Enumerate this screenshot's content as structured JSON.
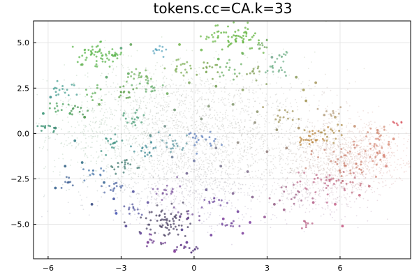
{
  "chart_data": {
    "type": "scatter",
    "title": "tokens.cc=CA.k=33",
    "xlabel": "",
    "ylabel": "",
    "xlim": [
      -6.6,
      8.9
    ],
    "ylim": [
      -6.9,
      6.2
    ],
    "xticks": [
      -6,
      -3,
      0,
      3,
      6
    ],
    "yticks": [
      -5.0,
      -2.5,
      0.0,
      2.5,
      5.0
    ],
    "xtick_labels": [
      "−6",
      "−3",
      "0",
      "3",
      "6"
    ],
    "ytick_labels": [
      "−5.0",
      "−2.5",
      "0.0",
      "2.5",
      "5.0"
    ],
    "grid": true,
    "legend": "none",
    "point_color_note": "Points are colored by 2D position in the embedding: green/teal at upper-left, blue/purple at lower-left and bottom, gray in the center, brown/orange/red/pink on the right.",
    "dense_cloud": [
      {
        "x": 0.3,
        "y": 0.0,
        "sx": 3.1,
        "sy": 1.8,
        "w": 0.42,
        "color": "#8b8d86"
      },
      {
        "x": -1.5,
        "y": 1.0,
        "sx": 1.9,
        "sy": 1.5,
        "w": 0.13,
        "color": "#6b8f64"
      },
      {
        "x": -0.2,
        "y": -2.7,
        "sx": 2.0,
        "sy": 1.1,
        "w": 0.16,
        "color": "#6d6a86"
      },
      {
        "x": 5.8,
        "y": -1.3,
        "sx": 1.3,
        "sy": 1.0,
        "w": 0.18,
        "color": "#b07d69"
      },
      {
        "x": 7.0,
        "y": -1.4,
        "sx": 0.9,
        "sy": 0.8,
        "w": 0.09,
        "color": "#cd7d70"
      },
      {
        "x": 5.2,
        "y": -3.2,
        "sx": 1.1,
        "sy": 0.7,
        "w": 0.06,
        "color": "#b86b84"
      }
    ],
    "clusters": [
      {
        "x": 1.8,
        "y": 5.4,
        "r": 0.45,
        "n": 55,
        "color": "#59b22f"
      },
      {
        "x": -4.1,
        "y": 4.3,
        "r": 0.35,
        "n": 42,
        "color": "#57b847"
      },
      {
        "x": -3.3,
        "y": 4.4,
        "r": 0.2,
        "n": 20,
        "color": "#58b84a"
      },
      {
        "x": -1.5,
        "y": 4.6,
        "r": 0.15,
        "n": 12,
        "color": "#5aa8d8"
      },
      {
        "x": 0.8,
        "y": 5.3,
        "r": 0.18,
        "n": 12,
        "color": "#6bbd45"
      },
      {
        "x": 2.8,
        "y": 4.9,
        "r": 0.2,
        "n": 10,
        "color": "#6fa862"
      },
      {
        "x": 3.7,
        "y": 4.3,
        "r": 0.18,
        "n": 10,
        "color": "#7ab99a"
      },
      {
        "x": -2.1,
        "y": 3.2,
        "r": 0.3,
        "n": 22,
        "color": "#70b85a"
      },
      {
        "x": -0.5,
        "y": 3.7,
        "r": 0.3,
        "n": 18,
        "color": "#7cb24e"
      },
      {
        "x": 0.6,
        "y": 3.6,
        "r": 0.25,
        "n": 14,
        "color": "#6a9f35"
      },
      {
        "x": 1.4,
        "y": 3.5,
        "r": 0.25,
        "n": 14,
        "color": "#5fb25c"
      },
      {
        "x": 2.5,
        "y": 3.3,
        "r": 0.25,
        "n": 12,
        "color": "#7b9b46"
      },
      {
        "x": 3.3,
        "y": 3.6,
        "r": 0.25,
        "n": 14,
        "color": "#69b28c"
      },
      {
        "x": -5.3,
        "y": 2.4,
        "r": 0.3,
        "n": 16,
        "color": "#3a9b97"
      },
      {
        "x": -4.2,
        "y": 2.3,
        "r": 0.2,
        "n": 10,
        "color": "#56b04c"
      },
      {
        "x": -2.8,
        "y": 2.2,
        "r": 0.25,
        "n": 14,
        "color": "#4f9d37"
      },
      {
        "x": -1.9,
        "y": 2.6,
        "r": 0.25,
        "n": 14,
        "color": "#5cb065"
      },
      {
        "x": -5.6,
        "y": 1.4,
        "r": 0.2,
        "n": 10,
        "color": "#3e9f54"
      },
      {
        "x": -4.7,
        "y": 1.3,
        "r": 0.2,
        "n": 10,
        "color": "#3b8f45"
      },
      {
        "x": -2.6,
        "y": 0.8,
        "r": 0.25,
        "n": 16,
        "color": "#3a9d73"
      },
      {
        "x": -6.1,
        "y": 0.3,
        "r": 0.2,
        "n": 12,
        "color": "#2c8a6f"
      },
      {
        "x": -3.5,
        "y": -0.5,
        "r": 0.3,
        "n": 16,
        "color": "#2f8f84"
      },
      {
        "x": -2.9,
        "y": -1.7,
        "r": 0.3,
        "n": 18,
        "color": "#2f6f6a"
      },
      {
        "x": -2.0,
        "y": -1.0,
        "r": 0.3,
        "n": 18,
        "color": "#2f8a9a"
      },
      {
        "x": -3.3,
        "y": -3.0,
        "r": 0.25,
        "n": 14,
        "color": "#4e65b0"
      },
      {
        "x": -4.0,
        "y": -2.2,
        "r": 0.25,
        "n": 12,
        "color": "#456fb8"
      },
      {
        "x": -5.1,
        "y": -2.6,
        "r": 0.2,
        "n": 10,
        "color": "#3a58a0"
      },
      {
        "x": -0.9,
        "y": -0.5,
        "r": 0.35,
        "n": 18,
        "color": "#4e97a5"
      },
      {
        "x": 0.4,
        "y": -0.4,
        "r": 0.35,
        "n": 20,
        "color": "#4e79c8"
      },
      {
        "x": -1.1,
        "y": -3.1,
        "r": 0.3,
        "n": 16,
        "color": "#7a4aa0"
      },
      {
        "x": -1.3,
        "y": -4.9,
        "r": 0.5,
        "n": 70,
        "color": "#3b3650"
      },
      {
        "x": -2.5,
        "y": -4.2,
        "r": 0.25,
        "n": 12,
        "color": "#4b4fa0"
      },
      {
        "x": -0.2,
        "y": -4.5,
        "r": 0.25,
        "n": 12,
        "color": "#6a3f8f"
      },
      {
        "x": 0.9,
        "y": -3.8,
        "r": 0.25,
        "n": 12,
        "color": "#6b3fa0"
      },
      {
        "x": 1.5,
        "y": -5.0,
        "r": 0.2,
        "n": 10,
        "color": "#6d3a98"
      },
      {
        "x": -1.5,
        "y": -5.9,
        "r": 0.18,
        "n": 10,
        "color": "#6b2f8a"
      },
      {
        "x": -0.5,
        "y": -6.2,
        "r": 0.15,
        "n": 8,
        "color": "#5a2a80"
      },
      {
        "x": 0.0,
        "y": -6.3,
        "r": 0.15,
        "n": 8,
        "color": "#4a2a70"
      },
      {
        "x": 4.8,
        "y": -0.3,
        "r": 0.35,
        "n": 26,
        "color": "#c0842e"
      },
      {
        "x": 5.5,
        "y": 0.1,
        "r": 0.3,
        "n": 16,
        "color": "#a88a36"
      },
      {
        "x": 3.8,
        "y": 0.9,
        "r": 0.3,
        "n": 14,
        "color": "#a2924c"
      },
      {
        "x": 5.6,
        "y": 1.1,
        "r": 0.25,
        "n": 10,
        "color": "#b5a07a"
      },
      {
        "x": 6.5,
        "y": -1.6,
        "r": 0.7,
        "n": 40,
        "color": "#cf7f6b"
      },
      {
        "x": 7.4,
        "y": -0.8,
        "r": 0.5,
        "n": 24,
        "color": "#d88a77"
      },
      {
        "x": 5.2,
        "y": -2.8,
        "r": 0.5,
        "n": 26,
        "color": "#c8638a"
      },
      {
        "x": 6.3,
        "y": -2.6,
        "r": 0.4,
        "n": 16,
        "color": "#c56a7c"
      },
      {
        "x": 4.1,
        "y": -3.5,
        "r": 0.35,
        "n": 14,
        "color": "#a4577f"
      },
      {
        "x": 4.6,
        "y": -4.9,
        "r": 0.2,
        "n": 8,
        "color": "#c65a78"
      },
      {
        "x": 8.3,
        "y": 0.6,
        "r": 0.15,
        "n": 6,
        "color": "#d94a5a"
      },
      {
        "x": 7.5,
        "y": 0.1,
        "r": 0.25,
        "n": 10,
        "color": "#d08a70"
      }
    ],
    "speckles": [
      [
        -5.7,
        -3.0,
        "#2b5a8a"
      ],
      [
        -4.2,
        -3.9,
        "#2b3f7a"
      ],
      [
        -3.2,
        -4.4,
        "#3e4fb0"
      ],
      [
        -2.2,
        -5.5,
        "#5a3a90"
      ],
      [
        -0.8,
        -6.5,
        "#7a2a90"
      ],
      [
        -1.9,
        -6.0,
        "#6b2a8a"
      ],
      [
        1.2,
        -4.7,
        "#7a3a9a"
      ],
      [
        2.3,
        -4.9,
        "#7b3b9d"
      ],
      [
        1.8,
        -4.3,
        "#6b3a96"
      ],
      [
        -5.1,
        1.1,
        "#3f9f55"
      ],
      [
        -4.5,
        0.9,
        "#3f8f3f"
      ],
      [
        -3.9,
        1.6,
        "#5fa04a"
      ],
      [
        -3.6,
        3.1,
        "#4f9f5f"
      ],
      [
        -4.6,
        3.8,
        "#62b050"
      ],
      [
        -3.0,
        4.7,
        "#4fa070"
      ],
      [
        -2.6,
        4.9,
        "#5aa050"
      ],
      [
        -0.6,
        4.9,
        "#6db045"
      ],
      [
        0.3,
        4.6,
        "#6fb74f"
      ],
      [
        1.0,
        4.1,
        "#61b04e"
      ],
      [
        2.0,
        4.4,
        "#6bb05a"
      ],
      [
        3.2,
        4.2,
        "#6fa58a"
      ],
      [
        4.2,
        3.1,
        "#8a9a58"
      ],
      [
        4.5,
        2.4,
        "#a29a55"
      ],
      [
        5.0,
        2.8,
        "#a4955d"
      ],
      [
        4.6,
        1.8,
        "#a0924f"
      ],
      [
        -2.7,
        3.3,
        "#5aa658"
      ],
      [
        -1.1,
        2.2,
        "#69aa58"
      ],
      [
        -0.2,
        2.8,
        "#7aa55a"
      ],
      [
        0.9,
        2.6,
        "#729d52"
      ],
      [
        2.0,
        2.4,
        "#8aa060"
      ],
      [
        -5.9,
        2.0,
        "#3a8f8a"
      ],
      [
        -6.2,
        1.1,
        "#2f8f6f"
      ],
      [
        -5.7,
        0.3,
        "#2f7f6a"
      ],
      [
        -4.9,
        -0.4,
        "#2e7a80"
      ],
      [
        -4.6,
        -1.6,
        "#2c6a82"
      ],
      [
        -5.3,
        -1.8,
        "#2a5a80"
      ],
      [
        -3.7,
        -2.7,
        "#2f5f8f"
      ],
      [
        -3.3,
        -3.6,
        "#3f4f9f"
      ],
      [
        -2.5,
        -3.2,
        "#4a4a9a"
      ],
      [
        -1.9,
        -3.8,
        "#5a4a9a"
      ],
      [
        -0.5,
        -5.3,
        "#4e3a88"
      ],
      [
        0.7,
        -5.6,
        "#6a3596"
      ],
      [
        5.8,
        0.9,
        "#b39c6b"
      ],
      [
        6.6,
        0.4,
        "#c48e6d"
      ],
      [
        8.0,
        -0.6,
        "#d98f7a"
      ],
      [
        7.9,
        -1.8,
        "#d47c73"
      ],
      [
        6.8,
        -3.4,
        "#c66980"
      ],
      [
        5.8,
        -3.9,
        "#c35e86"
      ],
      [
        4.9,
        -3.8,
        "#b25a85"
      ],
      [
        3.7,
        -4.2,
        "#9b5a85"
      ],
      [
        6.1,
        -5.1,
        "#c24e7a"
      ],
      [
        2.9,
        -4.6,
        "#8f4f8f"
      ],
      [
        3.3,
        -3.9,
        "#905a82"
      ],
      [
        2.4,
        -3.5,
        "#805a88"
      ],
      [
        1.6,
        -3.3,
        "#7a5a8c"
      ],
      [
        0.5,
        -3.1,
        "#6a5a8f"
      ],
      [
        -0.3,
        -2.2,
        "#6b5e8b"
      ],
      [
        1.1,
        -1.8,
        "#74708a"
      ],
      [
        2.2,
        -2.1,
        "#7c6b88"
      ],
      [
        3.0,
        -1.0,
        "#8e7a7a"
      ],
      [
        3.8,
        -0.8,
        "#9a7f70"
      ],
      [
        4.3,
        0.3,
        "#a48b5a"
      ],
      [
        3.4,
        0.2,
        "#918d6a"
      ],
      [
        2.6,
        1.2,
        "#8a9268"
      ],
      [
        1.6,
        1.6,
        "#7f9468"
      ],
      [
        0.6,
        1.5,
        "#7b936c"
      ],
      [
        -0.8,
        1.3,
        "#6d9470"
      ],
      [
        -1.8,
        -0.1,
        "#5d8b85"
      ],
      [
        -0.9,
        -1.3,
        "#6a7a94"
      ],
      [
        0.0,
        -1.5,
        "#6c76a2"
      ],
      [
        0.9,
        -0.8,
        "#7a7d8f"
      ],
      [
        1.8,
        -0.5,
        "#8b847b"
      ],
      [
        2.5,
        0.6,
        "#8c8a74"
      ],
      [
        -1.2,
        0.4,
        "#6f8e86"
      ],
      [
        0.3,
        0.8,
        "#7d8e78"
      ],
      [
        -2.8,
        -5.1,
        "#4a3c88"
      ],
      [
        -0.3,
        -6.0,
        "#5b2d89"
      ],
      [
        2.0,
        -5.5,
        "#7a3a9a"
      ],
      [
        7.2,
        -2.9,
        "#c46e7d"
      ],
      [
        7.8,
        -1.2,
        "#d88677"
      ],
      [
        8.2,
        -0.3,
        "#d98c79"
      ]
    ]
  }
}
